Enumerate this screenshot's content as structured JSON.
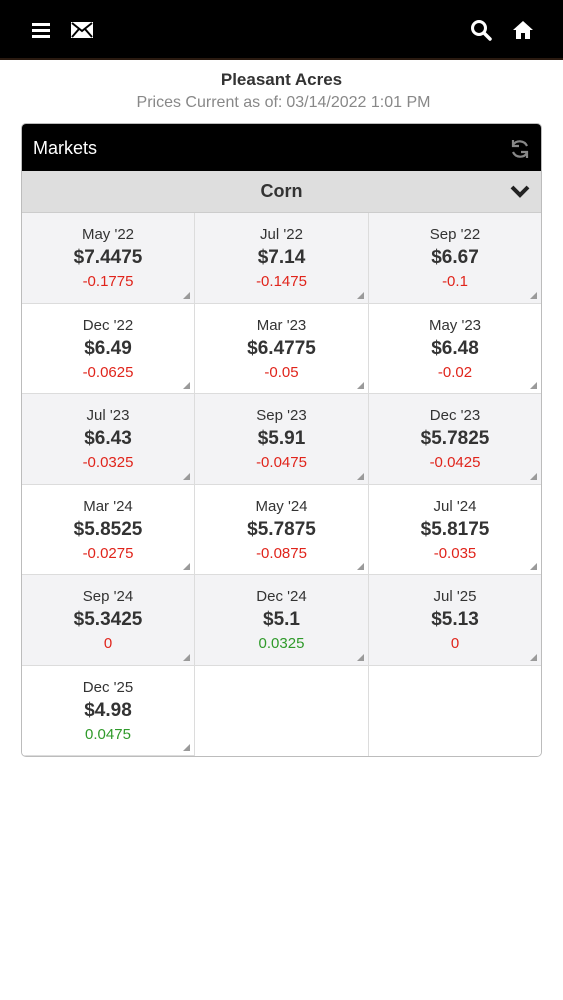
{
  "header": {
    "icons": [
      "menu-icon",
      "mail-icon",
      "search-icon",
      "home-icon"
    ]
  },
  "location": {
    "name": "Pleasant Acres",
    "prices_label": "Prices Current as of:",
    "prices_time": "03/14/2022 1:01 PM"
  },
  "markets": {
    "title": "Markets",
    "commodity": "Corn",
    "colors": {
      "negative": "#e0241b",
      "positive": "#2f9a2a",
      "zero": "#e0241b"
    },
    "contracts": [
      {
        "month": "May '22",
        "price": "$7.4475",
        "change": "-0.1775",
        "dir": "neg"
      },
      {
        "month": "Jul '22",
        "price": "$7.14",
        "change": "-0.1475",
        "dir": "neg"
      },
      {
        "month": "Sep '22",
        "price": "$6.67",
        "change": "-0.1",
        "dir": "neg"
      },
      {
        "month": "Dec '22",
        "price": "$6.49",
        "change": "-0.0625",
        "dir": "neg"
      },
      {
        "month": "Mar '23",
        "price": "$6.4775",
        "change": "-0.05",
        "dir": "neg"
      },
      {
        "month": "May '23",
        "price": "$6.48",
        "change": "-0.02",
        "dir": "neg"
      },
      {
        "month": "Jul '23",
        "price": "$6.43",
        "change": "-0.0325",
        "dir": "neg"
      },
      {
        "month": "Sep '23",
        "price": "$5.91",
        "change": "-0.0475",
        "dir": "neg"
      },
      {
        "month": "Dec '23",
        "price": "$5.7825",
        "change": "-0.0425",
        "dir": "neg"
      },
      {
        "month": "Mar '24",
        "price": "$5.8525",
        "change": "-0.0275",
        "dir": "neg"
      },
      {
        "month": "May '24",
        "price": "$5.7875",
        "change": "-0.0875",
        "dir": "neg"
      },
      {
        "month": "Jul '24",
        "price": "$5.8175",
        "change": "-0.035",
        "dir": "neg"
      },
      {
        "month": "Sep '24",
        "price": "$5.3425",
        "change": "0",
        "dir": "zero"
      },
      {
        "month": "Dec '24",
        "price": "$5.1",
        "change": "0.0325",
        "dir": "pos"
      },
      {
        "month": "Jul '25",
        "price": "$5.13",
        "change": "0",
        "dir": "zero"
      },
      {
        "month": "Dec '25",
        "price": "$4.98",
        "change": "0.0475",
        "dir": "pos"
      }
    ]
  }
}
